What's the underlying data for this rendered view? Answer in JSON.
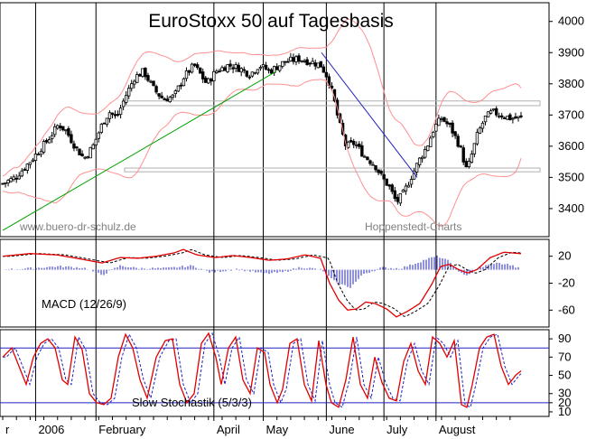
{
  "chart_data": [
    {
      "type": "candlestick",
      "panel": "price",
      "title": "EuroStoxx 50 auf Tagesbasis",
      "watermark_left": "www.buero-dr-schulz.de",
      "watermark_right": "Hoppenstedt-Charts",
      "y_ticks": [
        3400,
        3500,
        3600,
        3700,
        3800,
        3900,
        4000
      ],
      "ylim": [
        3310,
        4060
      ],
      "n_bars": 190,
      "close_path": [
        [
          0,
          3480
        ],
        [
          14,
          3500
        ],
        [
          30,
          3550
        ],
        [
          50,
          3620
        ],
        [
          62,
          3670
        ],
        [
          70,
          3650
        ],
        [
          80,
          3600
        ],
        [
          90,
          3560
        ],
        [
          100,
          3600
        ],
        [
          110,
          3670
        ],
        [
          118,
          3710
        ],
        [
          126,
          3690
        ],
        [
          136,
          3760
        ],
        [
          146,
          3820
        ],
        [
          156,
          3840
        ],
        [
          168,
          3780
        ],
        [
          178,
          3750
        ],
        [
          190,
          3760
        ],
        [
          200,
          3820
        ],
        [
          212,
          3860
        ],
        [
          226,
          3800
        ],
        [
          236,
          3840
        ],
        [
          250,
          3860
        ],
        [
          262,
          3850
        ],
        [
          274,
          3830
        ],
        [
          284,
          3860
        ],
        [
          296,
          3840
        ],
        [
          312,
          3870
        ],
        [
          328,
          3880
        ],
        [
          342,
          3870
        ],
        [
          352,
          3860
        ],
        [
          360,
          3820
        ],
        [
          366,
          3760
        ],
        [
          372,
          3680
        ],
        [
          380,
          3600
        ],
        [
          390,
          3610
        ],
        [
          400,
          3570
        ],
        [
          412,
          3540
        ],
        [
          420,
          3500
        ],
        [
          428,
          3470
        ],
        [
          436,
          3420
        ],
        [
          444,
          3450
        ],
        [
          452,
          3500
        ],
        [
          462,
          3560
        ],
        [
          470,
          3600
        ],
        [
          478,
          3660
        ],
        [
          486,
          3690
        ],
        [
          496,
          3660
        ],
        [
          506,
          3600
        ],
        [
          514,
          3520
        ],
        [
          520,
          3580
        ],
        [
          526,
          3640
        ],
        [
          534,
          3690
        ],
        [
          542,
          3710
        ],
        [
          552,
          3700
        ],
        [
          562,
          3690
        ],
        [
          574,
          3690
        ]
      ],
      "support_zones": [
        [
          3730,
          3745
        ],
        [
          3518,
          3530
        ]
      ],
      "trendlines": [
        {
          "color": "#00a000",
          "from": [
            3,
            3330
          ],
          "to": [
            306,
            3840
          ]
        },
        {
          "color": "#2020c0",
          "from": [
            356,
            3900
          ],
          "to": [
            462,
            3500
          ]
        }
      ]
    },
    {
      "type": "line",
      "panel": "macd",
      "label": "MACD (12/26/9)",
      "y_ticks": [
        20,
        -20,
        -60
      ],
      "ylim": [
        -85,
        45
      ],
      "macd_path": [
        [
          0,
          20
        ],
        [
          30,
          24
        ],
        [
          60,
          22
        ],
        [
          90,
          15
        ],
        [
          110,
          10
        ],
        [
          130,
          18
        ],
        [
          150,
          17
        ],
        [
          170,
          20
        ],
        [
          190,
          25
        ],
        [
          200,
          30
        ],
        [
          215,
          22
        ],
        [
          235,
          18
        ],
        [
          255,
          21
        ],
        [
          275,
          18
        ],
        [
          295,
          14
        ],
        [
          315,
          16
        ],
        [
          335,
          22
        ],
        [
          352,
          17
        ],
        [
          362,
          -20
        ],
        [
          372,
          -45
        ],
        [
          382,
          -60
        ],
        [
          392,
          -58
        ],
        [
          402,
          -48
        ],
        [
          412,
          -50
        ],
        [
          425,
          -58
        ],
        [
          436,
          -70
        ],
        [
          448,
          -62
        ],
        [
          462,
          -50
        ],
        [
          475,
          -22
        ],
        [
          485,
          5
        ],
        [
          495,
          8
        ],
        [
          505,
          0
        ],
        [
          515,
          -5
        ],
        [
          525,
          0
        ],
        [
          540,
          18
        ],
        [
          555,
          26
        ],
        [
          572,
          24
        ]
      ],
      "histogram": [
        [
          0,
          0
        ],
        [
          30,
          2
        ],
        [
          60,
          5
        ],
        [
          90,
          3
        ],
        [
          110,
          -8
        ],
        [
          130,
          6
        ],
        [
          150,
          2
        ],
        [
          180,
          2
        ],
        [
          210,
          6
        ],
        [
          230,
          -4
        ],
        [
          260,
          1
        ],
        [
          290,
          -6
        ],
        [
          310,
          -4
        ],
        [
          330,
          4
        ],
        [
          352,
          0
        ],
        [
          370,
          -20
        ],
        [
          385,
          -26
        ],
        [
          400,
          -6
        ],
        [
          420,
          3
        ],
        [
          440,
          2
        ],
        [
          450,
          6
        ],
        [
          470,
          16
        ],
        [
          482,
          20
        ],
        [
          495,
          12
        ],
        [
          505,
          -4
        ],
        [
          515,
          -8
        ],
        [
          530,
          4
        ],
        [
          545,
          10
        ],
        [
          560,
          8
        ],
        [
          572,
          2
        ]
      ]
    },
    {
      "type": "line",
      "panel": "stochastic",
      "label": "Slow Stochastik (5/3/3)",
      "y_ticks": [
        10,
        20,
        30,
        50,
        70,
        90
      ],
      "ylim": [
        5,
        100
      ],
      "reference_lines": [
        80,
        20
      ],
      "k_path": [
        [
          0,
          70
        ],
        [
          10,
          80
        ],
        [
          18,
          60
        ],
        [
          26,
          40
        ],
        [
          34,
          70
        ],
        [
          42,
          85
        ],
        [
          50,
          90
        ],
        [
          58,
          80
        ],
        [
          66,
          45
        ],
        [
          72,
          40
        ],
        [
          80,
          92
        ],
        [
          88,
          78
        ],
        [
          96,
          30
        ],
        [
          104,
          20
        ],
        [
          112,
          18
        ],
        [
          120,
          25
        ],
        [
          128,
          70
        ],
        [
          136,
          95
        ],
        [
          144,
          80
        ],
        [
          152,
          45
        ],
        [
          160,
          25
        ],
        [
          170,
          70
        ],
        [
          180,
          88
        ],
        [
          188,
          90
        ],
        [
          196,
          40
        ],
        [
          204,
          20
        ],
        [
          212,
          30
        ],
        [
          220,
          85
        ],
        [
          228,
          96
        ],
        [
          236,
          70
        ],
        [
          242,
          40
        ],
        [
          250,
          80
        ],
        [
          258,
          92
        ],
        [
          266,
          45
        ],
        [
          274,
          30
        ],
        [
          282,
          80
        ],
        [
          290,
          75
        ],
        [
          296,
          40
        ],
        [
          304,
          20
        ],
        [
          310,
          35
        ],
        [
          318,
          85
        ],
        [
          326,
          90
        ],
        [
          334,
          40
        ],
        [
          342,
          22
        ],
        [
          350,
          88
        ],
        [
          358,
          40
        ],
        [
          364,
          20
        ],
        [
          372,
          15
        ],
        [
          380,
          45
        ],
        [
          388,
          92
        ],
        [
          396,
          40
        ],
        [
          404,
          25
        ],
        [
          412,
          70
        ],
        [
          420,
          42
        ],
        [
          428,
          25
        ],
        [
          436,
          22
        ],
        [
          444,
          65
        ],
        [
          452,
          85
        ],
        [
          460,
          55
        ],
        [
          468,
          40
        ],
        [
          476,
          92
        ],
        [
          484,
          85
        ],
        [
          492,
          70
        ],
        [
          500,
          88
        ],
        [
          508,
          18
        ],
        [
          514,
          15
        ],
        [
          520,
          40
        ],
        [
          528,
          80
        ],
        [
          536,
          92
        ],
        [
          544,
          95
        ],
        [
          552,
          60
        ],
        [
          560,
          40
        ],
        [
          568,
          50
        ],
        [
          574,
          55
        ]
      ]
    }
  ],
  "x_axis": {
    "labels": [
      {
        "bar": 0,
        "text": "r"
      },
      {
        "bar": 12,
        "text": "2006"
      },
      {
        "bar": 34,
        "text": "February"
      },
      {
        "bar": 77,
        "text": "April"
      },
      {
        "bar": 95,
        "text": "May"
      },
      {
        "bar": 118,
        "text": "June"
      },
      {
        "bar": 139,
        "text": "July"
      },
      {
        "bar": 158,
        "text": "August"
      }
    ]
  },
  "colors": {
    "candles": "#000000",
    "bollinger": "#ff9090",
    "macd": "#e00000",
    "signal": "#000000",
    "histogram": "#2020c0",
    "stoch_k": "#e00000",
    "stoch_d": "#2020c0",
    "ref_line": "#2020c0",
    "zone": "#b0b0b0"
  }
}
